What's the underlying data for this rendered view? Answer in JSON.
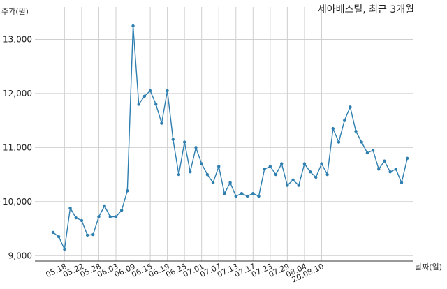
{
  "chart_data": {
    "type": "line",
    "title": "세아베스틸, 최근 3개월",
    "ylabel": "주가(원)",
    "xlabel": "날짜(일)",
    "ylim": [
      8900,
      13600
    ],
    "yticks": [
      9000,
      10000,
      11000,
      12000,
      13000
    ],
    "ytick_labels": [
      "9,000",
      "10,000",
      "11,000",
      "12,000",
      "13,000"
    ],
    "xtick_labels": [
      "05.18",
      "05.22",
      "05.28",
      "06.03",
      "06.09",
      "06.15",
      "06.19",
      "06.25",
      "07.01",
      "07.07",
      "07.13",
      "07.17",
      "07.23",
      "07.29",
      "08.04",
      "20.08.10"
    ],
    "xtick_index": [
      2,
      5,
      8,
      11,
      14,
      17,
      20,
      23,
      26,
      29,
      32,
      35,
      38,
      41,
      44,
      47
    ],
    "grid": true,
    "line_color": "#2e7fb0",
    "series": [
      {
        "values": [
          9430,
          9350,
          9120,
          9880,
          9700,
          9650,
          9380,
          9390,
          9720,
          9920,
          9720,
          9720,
          9840,
          10200,
          13250,
          11800,
          11950,
          12050,
          11800,
          11450,
          12050,
          11150,
          10500,
          11100,
          10550,
          11000,
          10700,
          10500,
          10350,
          10650,
          10150,
          10350,
          10100,
          10150,
          10100,
          10150,
          10100,
          10600,
          10650,
          10500,
          10700,
          10300,
          10400,
          10300,
          10700,
          10550,
          10450,
          10700,
          10500,
          11350,
          11100,
          11500,
          11750,
          11300,
          11100,
          10900,
          10950,
          10600,
          10750,
          10550,
          10600,
          10350,
          10800
        ]
      }
    ]
  }
}
